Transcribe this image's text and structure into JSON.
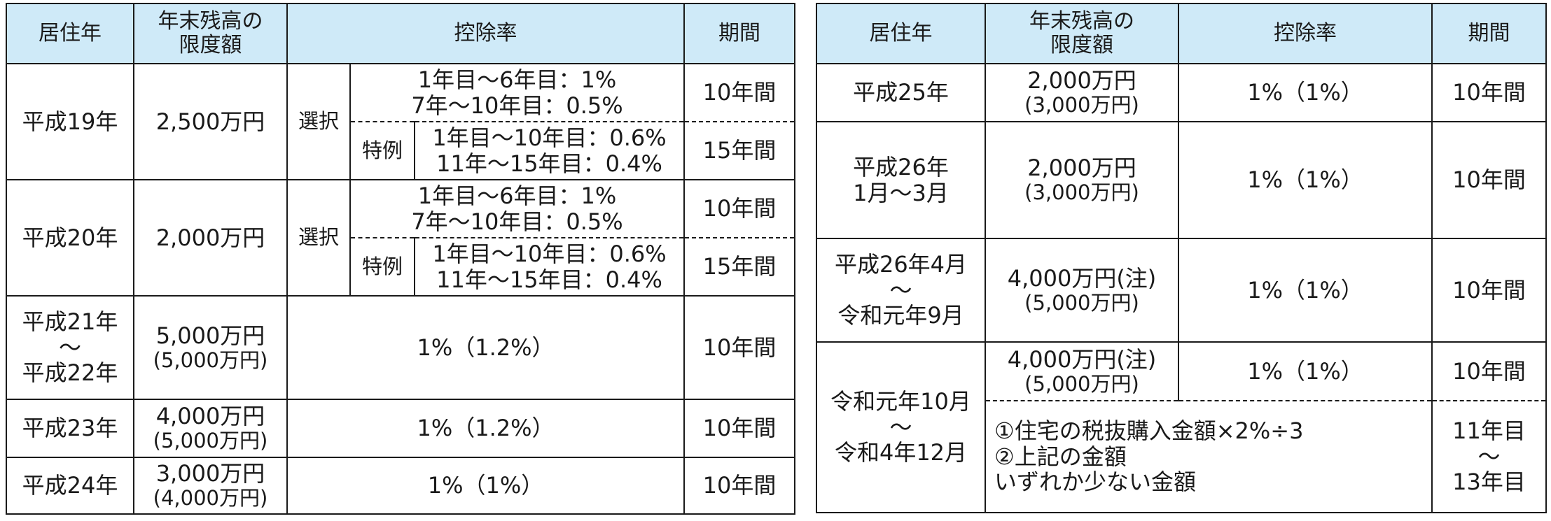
{
  "headers": {
    "year": "居住年",
    "limit_line1": "年末残高の",
    "limit_line2": "限度額",
    "rate": "控除率",
    "period": "期間"
  },
  "left_table": {
    "h19": {
      "year": "平成19年",
      "limit": "2,500万円",
      "select": "選択",
      "special": "特例",
      "normal_rate_line1": "1年目～6年目：1%",
      "normal_rate_line2": "7年～10年目：0.5%",
      "normal_period": "10年間",
      "special_rate_line1": "1年目～10年目：0.6%",
      "special_rate_line2": "11年～15年目：0.4%",
      "special_period": "15年間"
    },
    "h20": {
      "year": "平成20年",
      "limit": "2,000万円",
      "select": "選択",
      "special": "特例",
      "normal_rate_line1": "1年目～6年目：1%",
      "normal_rate_line2": "7年～10年目：0.5%",
      "normal_period": "10年間",
      "special_rate_line1": "1年目～10年目：0.6%",
      "special_rate_line2": "11年～15年目：0.4%",
      "special_period": "15年間"
    },
    "h21": {
      "year_line1": "平成21年",
      "year_line2": "～",
      "year_line3": "平成22年",
      "limit_line1": "5,000万円",
      "limit_line2": "(5,000万円)",
      "rate": "1%（1.2%）",
      "period": "10年間"
    },
    "h23": {
      "year": "平成23年",
      "limit_line1": "4,000万円",
      "limit_line2": "(5,000万円)",
      "rate": "1%（1.2%）",
      "period": "10年間"
    },
    "h24": {
      "year": "平成24年",
      "limit_line1": "3,000万円",
      "limit_line2": "(4,000万円)",
      "rate": "1%（1%）",
      "period": "10年間"
    }
  },
  "right_table": {
    "h25": {
      "year": "平成25年",
      "limit_line1": "2,000万円",
      "limit_line2": "(3,000万円)",
      "rate": "1%（1%）",
      "period": "10年間"
    },
    "h26a": {
      "year_line1": "平成26年",
      "year_line2": "1月～3月",
      "limit_line1": "2,000万円",
      "limit_line2": "(3,000万円)",
      "rate": "1%（1%）",
      "period": "10年間"
    },
    "h26b": {
      "year_line1": "平成26年4月",
      "year_line2": "～",
      "year_line3": "令和元年9月",
      "limit_line1": "4,000万円(注)",
      "limit_line2": "(5,000万円)",
      "rate": "1%（1%）",
      "period": "10年間"
    },
    "r1": {
      "year_line1": "令和元年10月",
      "year_line2": "～",
      "year_line3": "令和4年12月",
      "limit_line1": "4,000万円(注)",
      "limit_line2": "(5,000万円)",
      "rate": "1%（1%）",
      "period": "10年間",
      "extra_line1": "①住宅の税抜購入金額×2%÷3",
      "extra_line2": "②上記の金額",
      "extra_line3": "いずれか少ない金額",
      "extra_period_line1": "11年目",
      "extra_period_line2": "～",
      "extra_period_line3": "13年目"
    }
  }
}
